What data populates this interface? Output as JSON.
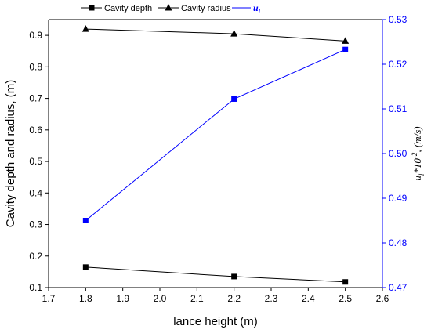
{
  "chart_data": {
    "type": "line",
    "xlabel": "lance height (m)",
    "ylabel_left": "Cavity depth and radius, (m)",
    "ylabel_right": {
      "main": "u",
      "main_sub": "l",
      "mid": "*10",
      "mid_sup": "-2",
      "tail": ", (m/s)"
    },
    "xlim": [
      1.7,
      2.6
    ],
    "ylim_left": [
      0.1,
      0.95
    ],
    "ylim_right": [
      0.47,
      0.53
    ],
    "x_ticks": [
      "1.7",
      "1.8",
      "1.9",
      "2.0",
      "2.1",
      "2.2",
      "2.3",
      "2.4",
      "2.5",
      "2.6"
    ],
    "y_left_ticks": [
      "0.1",
      "0.2",
      "0.3",
      "0.4",
      "0.5",
      "0.6",
      "0.7",
      "0.8",
      "0.9"
    ],
    "y_right_ticks": [
      "0.47",
      "0.48",
      "0.49",
      "0.50",
      "0.51",
      "0.52",
      "0.53"
    ],
    "grid": false,
    "legend_position": "top",
    "series": [
      {
        "name": "Cavity depth",
        "axis": "left",
        "marker": "square",
        "color": "#000000",
        "x": [
          1.8,
          2.2,
          2.5
        ],
        "y": [
          0.165,
          0.135,
          0.118
        ]
      },
      {
        "name": "Cavity radius",
        "axis": "left",
        "marker": "triangle",
        "color": "#000000",
        "x": [
          1.8,
          2.2,
          2.5
        ],
        "y": [
          0.92,
          0.905,
          0.882
        ]
      },
      {
        "name": "u",
        "name_sub": "l",
        "axis": "right",
        "marker": "square",
        "color": "#0000ff",
        "x": [
          1.8,
          2.2,
          2.5
        ],
        "y": [
          0.485,
          0.5122,
          0.5233
        ]
      }
    ]
  }
}
